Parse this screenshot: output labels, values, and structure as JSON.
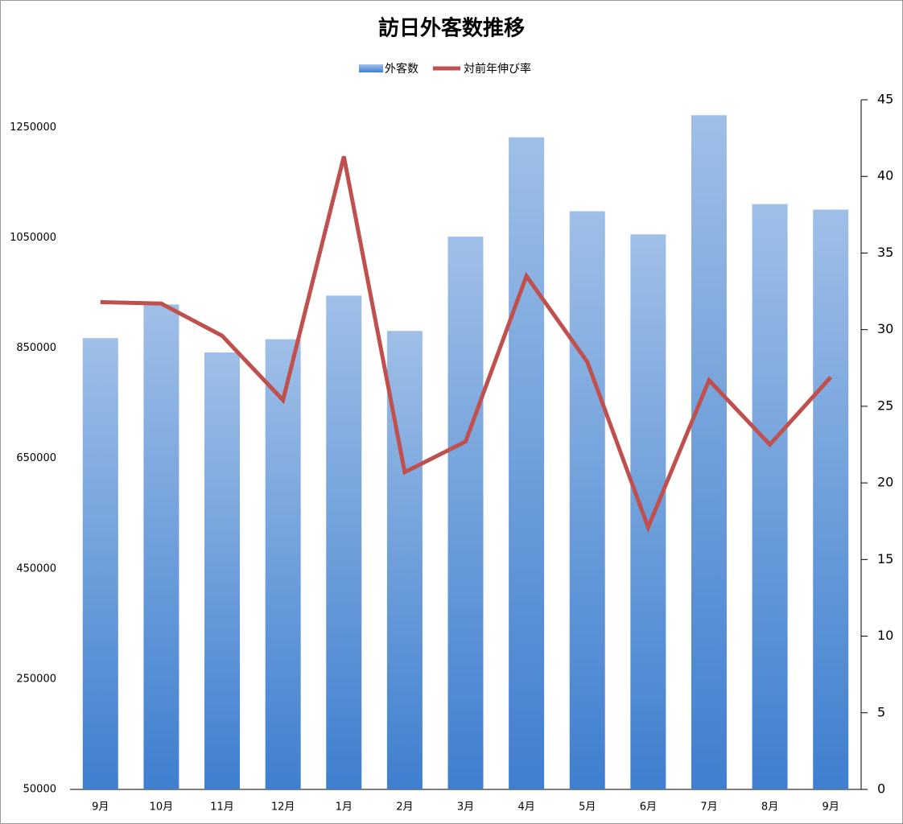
{
  "chart_data": {
    "type": "bar",
    "title": "訪日外客数推移",
    "categories": [
      "9月",
      "10月",
      "11月",
      "12月",
      "1月",
      "2月",
      "3月",
      "4月",
      "5月",
      "6月",
      "7月",
      "8月",
      "9月"
    ],
    "series": [
      {
        "name": "外客数",
        "type": "bar",
        "color": "#3f7fcf",
        "values": [
          868000,
          929000,
          842000,
          866000,
          945000,
          881000,
          1052000,
          1232000,
          1098000,
          1056000,
          1272000,
          1111000,
          1101000
        ]
      },
      {
        "name": "対前年伸び率",
        "type": "line",
        "axis": "y2",
        "color": "#c0504d",
        "values": [
          31.8,
          31.7,
          29.6,
          25.4,
          41.3,
          20.7,
          22.7,
          33.5,
          27.9,
          17.1,
          26.7,
          22.5,
          26.9
        ]
      }
    ],
    "ylim": [
      50000,
      1300000
    ],
    "yticks": [
      50000,
      250000,
      450000,
      650000,
      850000,
      1050000,
      1250000
    ],
    "y2lim": [
      0,
      45
    ],
    "y2ticks": [
      0,
      5,
      10,
      15,
      20,
      25,
      30,
      35,
      40,
      45
    ],
    "legend": "top"
  }
}
